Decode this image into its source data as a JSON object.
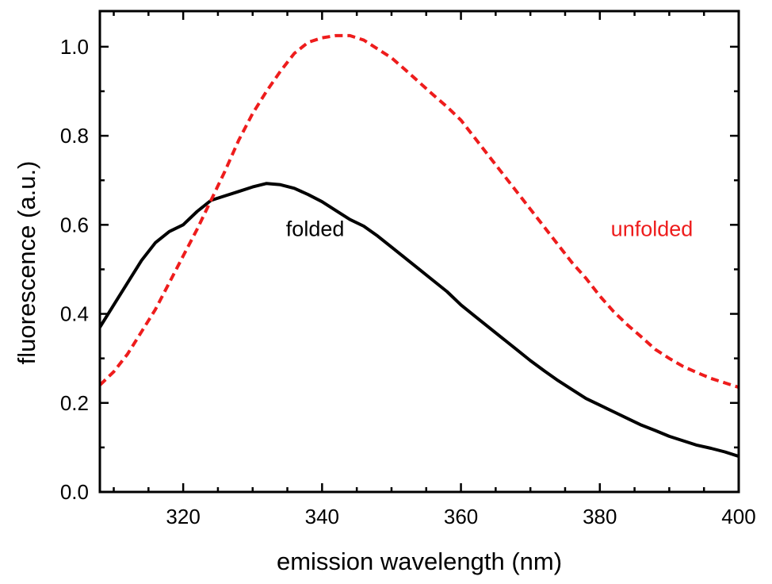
{
  "chart_data": {
    "type": "line",
    "title": "",
    "xlabel": "emission wavelength (nm)",
    "ylabel": "fluorescence (a.u.)",
    "xlim": [
      308,
      400
    ],
    "ylim": [
      0.0,
      1.08
    ],
    "xticks": [
      320,
      340,
      360,
      380,
      400
    ],
    "xtick_labels": [
      "320",
      "340",
      "360",
      "380",
      "400"
    ],
    "yticks": [
      0.0,
      0.2,
      0.4,
      0.6,
      0.8,
      1.0
    ],
    "ytick_labels": [
      "0.0",
      "0.2",
      "0.4",
      "0.6",
      "0.8",
      "1.0"
    ],
    "x_minor_step": 5,
    "y_minor_step": 0.1,
    "grid": false,
    "legend": "none",
    "series": [
      {
        "name": "folded",
        "color": "#000000",
        "line_style": "solid",
        "x": [
          308,
          310,
          312,
          314,
          316,
          318,
          320,
          322,
          324,
          326,
          328,
          330,
          332,
          334,
          336,
          338,
          340,
          342,
          344,
          346,
          348,
          350,
          352,
          354,
          356,
          358,
          360,
          362,
          364,
          366,
          368,
          370,
          372,
          374,
          376,
          378,
          380,
          382,
          384,
          386,
          388,
          390,
          392,
          394,
          396,
          398,
          400
        ],
        "y": [
          0.37,
          0.42,
          0.47,
          0.52,
          0.56,
          0.585,
          0.6,
          0.63,
          0.655,
          0.665,
          0.675,
          0.685,
          0.693,
          0.69,
          0.682,
          0.668,
          0.652,
          0.632,
          0.612,
          0.597,
          0.575,
          0.55,
          0.525,
          0.5,
          0.475,
          0.45,
          0.42,
          0.395,
          0.37,
          0.345,
          0.32,
          0.295,
          0.272,
          0.25,
          0.23,
          0.21,
          0.195,
          0.18,
          0.165,
          0.15,
          0.138,
          0.125,
          0.115,
          0.105,
          0.098,
          0.09,
          0.08
        ]
      },
      {
        "name": "unfolded",
        "color": "#ee1c1c",
        "line_style": "dashed",
        "x": [
          308,
          310,
          312,
          314,
          316,
          318,
          320,
          322,
          324,
          326,
          328,
          330,
          332,
          334,
          336,
          338,
          340,
          342,
          344,
          346,
          348,
          350,
          352,
          354,
          356,
          358,
          360,
          362,
          364,
          366,
          368,
          370,
          372,
          374,
          376,
          378,
          380,
          382,
          384,
          386,
          388,
          390,
          392,
          394,
          396,
          398,
          400
        ],
        "y": [
          0.24,
          0.27,
          0.31,
          0.36,
          0.41,
          0.47,
          0.53,
          0.59,
          0.655,
          0.72,
          0.79,
          0.85,
          0.9,
          0.945,
          0.985,
          1.01,
          1.02,
          1.025,
          1.025,
          1.015,
          0.995,
          0.975,
          0.948,
          0.92,
          0.892,
          0.865,
          0.835,
          0.795,
          0.755,
          0.715,
          0.675,
          0.635,
          0.595,
          0.555,
          0.515,
          0.48,
          0.44,
          0.405,
          0.375,
          0.348,
          0.32,
          0.3,
          0.282,
          0.268,
          0.255,
          0.245,
          0.235
        ]
      }
    ],
    "annotations": [
      {
        "text": "folded",
        "color": "#000000",
        "x": 339,
        "y": 0.575
      },
      {
        "text": "unfolded",
        "color": "#ee1c1c",
        "x": 387.5,
        "y": 0.575
      }
    ]
  }
}
